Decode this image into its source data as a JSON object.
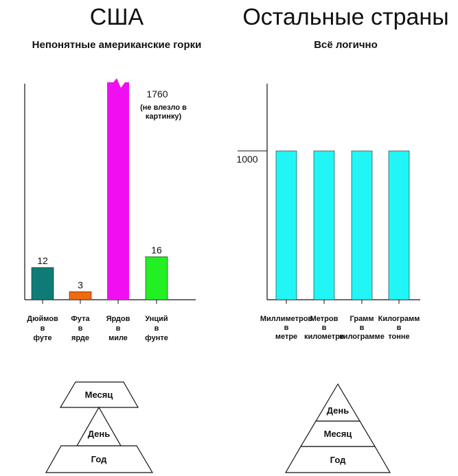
{
  "left_panel": {
    "title": "США",
    "subtitle": "Непонятные американские горки"
  },
  "right_panel": {
    "title": "Остальные страны",
    "subtitle": "Всё логично"
  },
  "chart_data": [
    {
      "type": "bar",
      "title": "Непонятные американские горки",
      "categories": [
        [
          "Дюймов",
          "в",
          "футе"
        ],
        [
          "Фута",
          "в",
          "ярде"
        ],
        [
          "Ярдов",
          "в",
          "миле"
        ],
        [
          "Унций",
          "в",
          "фунте"
        ]
      ],
      "values": [
        12,
        3,
        1760,
        16
      ],
      "value_labels": [
        "12",
        "3",
        "1760",
        "16"
      ],
      "colors": [
        "#0f7b76",
        "#f06a10",
        "#f00ff0",
        "#22f022"
      ],
      "truncated_bar_index": 2,
      "truncation_note": [
        "(не влезло в",
        "картинку)"
      ]
    },
    {
      "type": "bar",
      "title": "Всё логично",
      "categories": [
        [
          "Миллиметров",
          "в",
          "метре"
        ],
        [
          "Метров",
          "в",
          "километре"
        ],
        [
          "Грамм",
          "в",
          "килограмме"
        ],
        [
          "Килограмм",
          "в",
          "тонне"
        ]
      ],
      "values": [
        1000,
        1000,
        1000,
        1000
      ],
      "y_tick_label": "1000",
      "colors": [
        "#22f5f5",
        "#22f5f5",
        "#22f5f5",
        "#22f5f5"
      ]
    }
  ],
  "pyramids": {
    "left": [
      "Месяц",
      "День",
      "Год"
    ],
    "right": [
      "День",
      "Месяц",
      "Год"
    ]
  }
}
